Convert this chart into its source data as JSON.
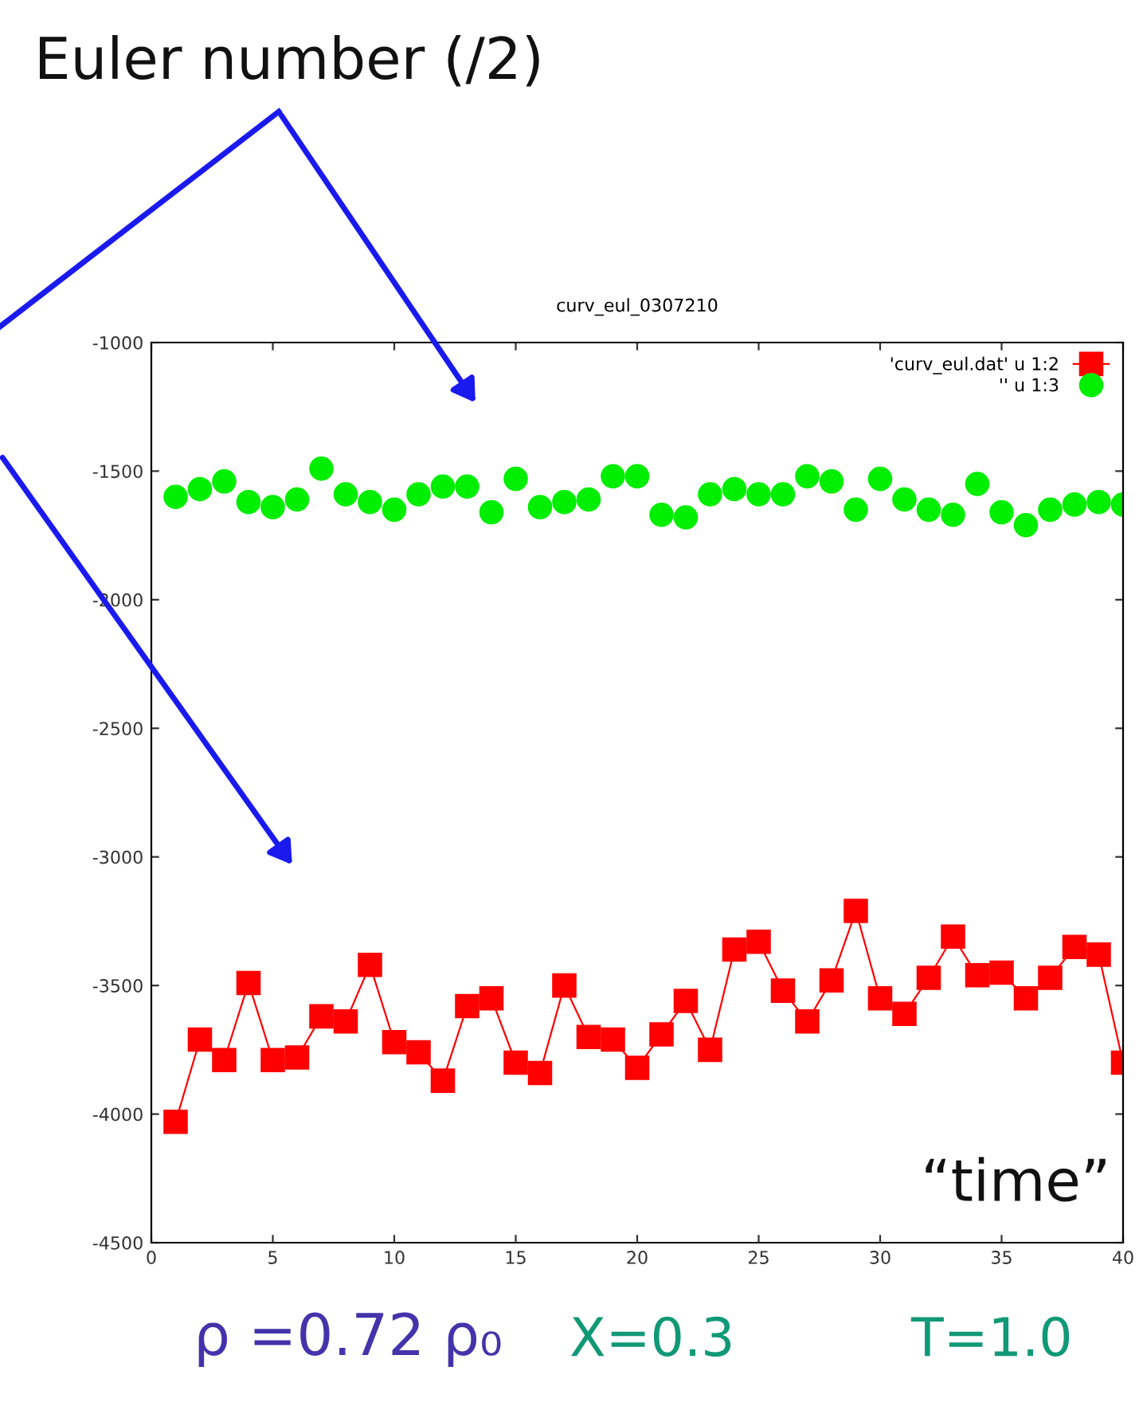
{
  "chart_data": {
    "type": "line",
    "title": "curv_eul_0307210",
    "x": [
      1,
      2,
      3,
      4,
      5,
      6,
      7,
      8,
      9,
      10,
      11,
      12,
      13,
      14,
      15,
      16,
      17,
      18,
      19,
      20,
      21,
      22,
      23,
      24,
      25,
      26,
      27,
      28,
      29,
      30,
      31,
      32,
      33,
      34,
      35,
      36,
      37,
      38,
      39,
      40
    ],
    "series": [
      {
        "name": "'curv_eul.dat' u 1:2",
        "marker": "square",
        "color": "#ff0000",
        "values": [
          -4030,
          -3710,
          -3790,
          -3490,
          -3790,
          -3780,
          -3620,
          -3640,
          -3420,
          -3720,
          -3760,
          -3870,
          -3580,
          -3550,
          -3800,
          -3840,
          -3500,
          -3700,
          -3710,
          -3820,
          -3690,
          -3560,
          -3750,
          -3360,
          -3330,
          -3520,
          -3640,
          -3480,
          -3210,
          -3550,
          -3610,
          -3470,
          -3310,
          -3460,
          -3450,
          -3550,
          -3470,
          -3350,
          -3380,
          -3800
        ]
      },
      {
        "name": "'' u 1:3",
        "type": "scatter",
        "marker": "circle",
        "color": "#00ee00",
        "values": [
          -1600,
          -1570,
          -1540,
          -1620,
          -1640,
          -1610,
          -1490,
          -1590,
          -1620,
          -1650,
          -1590,
          -1560,
          -1560,
          -1660,
          -1530,
          -1640,
          -1620,
          -1610,
          -1520,
          -1520,
          -1670,
          -1680,
          -1590,
          -1570,
          -1590,
          -1590,
          -1520,
          -1540,
          -1650,
          -1530,
          -1610,
          -1650,
          -1670,
          -1550,
          -1660,
          -1710,
          -1650,
          -1630,
          -1620,
          -1630
        ]
      }
    ],
    "xlim": [
      0,
      40
    ],
    "xticks": [
      0,
      5,
      10,
      15,
      20,
      25,
      30,
      35,
      40
    ],
    "ylim": [
      -4500,
      -1000
    ],
    "yticks": [
      -4500,
      -4000,
      -3500,
      -3000,
      -2500,
      -2000,
      -1500,
      -1000
    ],
    "grid": false,
    "legend": "top right",
    "annotations": [
      "Euler number (/2)",
      "“time”",
      "ρ =0.72 ρ₀",
      "X=0.3",
      "T=1.0"
    ]
  }
}
